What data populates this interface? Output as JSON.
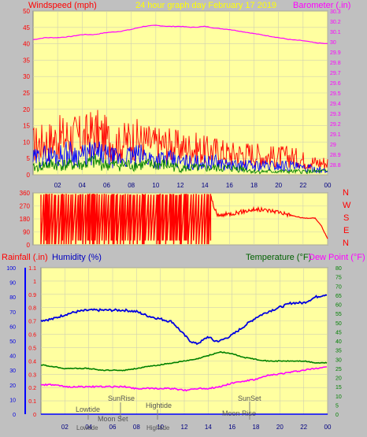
{
  "header": {
    "left_title": "Windspeed (mph)",
    "center_title": "24 hour graph day   February 17 2019",
    "right_title": "Barometer (.in)"
  },
  "colors": {
    "background": "#c0c0c0",
    "plot_bg": "#ffffa0",
    "gust": "#ff0000",
    "wind": "#0000ff",
    "avg": "#008000",
    "barometer": "#ff00ff",
    "humidity": "#0000e0",
    "temperature": "#008000",
    "dewpoint": "#ff00ff",
    "rainfall": "#0000ff",
    "direction": "#ff0000",
    "title_yellow": "#ffff00"
  },
  "x_axis": {
    "ticks": [
      "02",
      "04",
      "06",
      "08",
      "10",
      "12",
      "14",
      "16",
      "18",
      "20",
      "22",
      "00"
    ]
  },
  "direction_labels": [
    "N",
    "W",
    "S",
    "E",
    "N"
  ],
  "third_panel_headers": {
    "rainfall": "Rainfall (.in)",
    "humidity": "Humidity (%)",
    "temperature": "Temperature (°F)",
    "dewpoint": "Dew Point (°F)"
  },
  "events": {
    "lowtide_1": "Lowtide",
    "lowtide_2": "Lowtide",
    "sunrise": "SunRise",
    "moonset": "Moon Set",
    "hightide_1": "Hightide",
    "hightide_2": "Hightide",
    "sunset": "SunSet",
    "moonrise": "Moon Rise"
  },
  "chart_data": [
    {
      "type": "line",
      "panel": "wind-barometer",
      "x_range_hours": [
        0,
        24
      ],
      "x_ticks": [
        "02",
        "04",
        "06",
        "08",
        "10",
        "12",
        "14",
        "16",
        "18",
        "20",
        "22",
        "00"
      ],
      "left_axis": {
        "label": "Windspeed (mph)",
        "ylim": [
          0,
          50
        ],
        "ticks": [
          0,
          5,
          10,
          15,
          20,
          25,
          30,
          35,
          40,
          45,
          50
        ]
      },
      "right_axis": {
        "label": "Barometer (.in)",
        "ylim": [
          28.7,
          30.3
        ],
        "ticks": [
          "28.8",
          "28.9",
          "29",
          "29.1",
          "29.2",
          "29.3",
          "29.4",
          "29.5",
          "29.6",
          "29.7",
          "29.8",
          "29.9",
          "30",
          "30.1",
          "30.2",
          "30.3"
        ]
      },
      "grid": true,
      "series": [
        {
          "name": "Barometer (.in)",
          "axis": "right",
          "x": [
            0,
            1,
            2,
            3,
            4,
            5,
            6,
            7,
            8,
            9,
            10,
            11,
            12,
            13,
            14,
            15,
            16,
            17,
            18,
            19,
            20,
            21,
            22,
            23,
            24
          ],
          "values": [
            30.02,
            30.04,
            30.04,
            30.05,
            30.07,
            30.07,
            30.09,
            30.1,
            30.12,
            30.15,
            30.16,
            30.15,
            30.15,
            30.14,
            30.15,
            30.13,
            30.12,
            30.1,
            30.08,
            30.06,
            30.04,
            30.02,
            30.01,
            29.99,
            29.98
          ]
        },
        {
          "name": "gust",
          "axis": "left",
          "x": [
            0,
            1,
            2,
            3,
            4,
            5,
            6,
            7,
            8,
            9,
            10,
            11,
            12,
            13,
            14,
            15,
            16,
            17,
            18,
            19,
            20,
            21,
            22,
            23,
            24
          ],
          "values": [
            10,
            11,
            12,
            13,
            12,
            14,
            12,
            10,
            12,
            11,
            10,
            10,
            9,
            9,
            8,
            8,
            7,
            7,
            7,
            6,
            6,
            6,
            5,
            4,
            4
          ]
        },
        {
          "name": "wind",
          "axis": "left",
          "x": [
            0,
            1,
            2,
            3,
            4,
            5,
            6,
            7,
            8,
            9,
            10,
            11,
            12,
            13,
            14,
            15,
            16,
            17,
            18,
            19,
            20,
            21,
            22,
            23,
            24
          ],
          "values": [
            5,
            6,
            6,
            7,
            6,
            7,
            6,
            5,
            6,
            6,
            5,
            5,
            4,
            4,
            4,
            4,
            3,
            3,
            3,
            3,
            3,
            3,
            2,
            2,
            1
          ]
        },
        {
          "name": "average",
          "axis": "left",
          "x": [
            0,
            1,
            2,
            3,
            4,
            5,
            6,
            7,
            8,
            9,
            10,
            11,
            12,
            13,
            14,
            15,
            16,
            17,
            18,
            19,
            20,
            21,
            22,
            23,
            24
          ],
          "values": [
            2,
            3,
            3,
            3,
            3,
            4,
            3,
            3,
            3,
            3,
            3,
            3,
            2,
            2,
            2,
            2,
            2,
            2,
            1,
            1,
            1,
            1,
            1,
            1,
            1
          ]
        }
      ]
    },
    {
      "type": "line",
      "panel": "wind-direction",
      "x_range_hours": [
        0,
        24
      ],
      "left_axis": {
        "ylim": [
          0,
          360
        ],
        "ticks": [
          0,
          90,
          180,
          270,
          360
        ]
      },
      "right_labels": [
        "N",
        "W",
        "S",
        "E",
        "N"
      ],
      "grid": true,
      "series": [
        {
          "name": "direction",
          "x": [
            0,
            14.5,
            15,
            16,
            17,
            18,
            19,
            20,
            21,
            22,
            23,
            23.5,
            24
          ],
          "values": [
            330,
            330,
            200,
            215,
            230,
            245,
            240,
            230,
            205,
            185,
            185,
            130,
            40
          ]
        }
      ]
    },
    {
      "type": "line",
      "panel": "temperature-humidity",
      "x_range_hours": [
        0,
        24
      ],
      "left_axis_rain": {
        "label": "Rainfall (.in)",
        "ylim": [
          0,
          1.1
        ],
        "ticks": [
          "0",
          "0.1",
          "0.2",
          "0.3",
          "0.4",
          "0.5",
          "0.6",
          "0.7",
          "0.8",
          "0.9",
          "1",
          "1.1"
        ]
      },
      "left_axis_humidity": {
        "label": "Humidity (%)",
        "ylim": [
          0,
          100
        ],
        "ticks": [
          0,
          10,
          20,
          30,
          40,
          50,
          60,
          70,
          80,
          90,
          100
        ]
      },
      "right_axis_temp": {
        "label": "Temperature (°F)",
        "ylim": [
          0,
          80
        ],
        "ticks": [
          0,
          5,
          10,
          15,
          20,
          25,
          30,
          35,
          40,
          45,
          50,
          55,
          60,
          65,
          70,
          75,
          80
        ]
      },
      "grid": true,
      "series": [
        {
          "name": "Humidity (%)",
          "axis": "humidity",
          "x": [
            0,
            1,
            2,
            3,
            4,
            5,
            6,
            7,
            8,
            9,
            10,
            11,
            12,
            12.5,
            13,
            13.5,
            14,
            14.5,
            15,
            16,
            17,
            18,
            19,
            20,
            21,
            22,
            23,
            24
          ],
          "values": [
            64,
            65,
            68,
            70,
            71,
            71,
            71,
            71,
            70,
            67,
            65,
            63,
            54,
            50,
            48,
            50,
            53,
            50,
            50,
            54,
            60,
            66,
            70,
            73,
            76,
            76,
            80,
            82
          ]
        },
        {
          "name": "Temperature (°F)",
          "axis": "temp",
          "x": [
            0,
            1,
            2,
            3,
            4,
            5,
            6,
            7,
            8,
            9,
            10,
            11,
            12,
            13,
            14,
            15,
            16,
            17,
            18,
            19,
            20,
            21,
            22,
            23,
            24
          ],
          "values": [
            27,
            26,
            25,
            25,
            25,
            24,
            24,
            24,
            25,
            26,
            27,
            28,
            29,
            30,
            32,
            34,
            33,
            31,
            30,
            29,
            29,
            29,
            29,
            28,
            28
          ]
        },
        {
          "name": "Dew Point (°F)",
          "axis": "temp",
          "x": [
            0,
            1,
            2,
            3,
            4,
            5,
            6,
            7,
            8,
            9,
            10,
            11,
            12,
            13,
            14,
            15,
            16,
            17,
            18,
            19,
            20,
            21,
            22,
            23,
            24
          ],
          "values": [
            16,
            16,
            15,
            15,
            15,
            15,
            15,
            15,
            14,
            14,
            14,
            14,
            13,
            14,
            14,
            15,
            17,
            18,
            19,
            21,
            22,
            23,
            24,
            25,
            26
          ]
        },
        {
          "name": "Rainfall (.in)",
          "axis": "rain",
          "x": [
            0,
            24
          ],
          "values": [
            0,
            0
          ]
        }
      ]
    }
  ]
}
